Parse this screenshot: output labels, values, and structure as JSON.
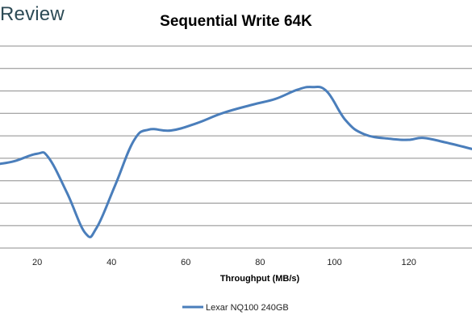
{
  "brand": {
    "text": "Review"
  },
  "chart_data": {
    "type": "line",
    "title": "Sequential Write 64K",
    "xlabel": "Throughput (MB/s)",
    "ylabel": "",
    "xlim": [
      10,
      137
    ],
    "x_ticks": [
      20,
      40,
      60,
      80,
      100,
      120
    ],
    "grid": true,
    "legend_position": "bottom",
    "series": [
      {
        "name": "Lexar NQ100 240GB",
        "color": "#4a7ebb",
        "x": [
          10,
          14,
          20,
          23,
          28,
          33,
          36,
          41,
          46,
          50,
          56,
          63,
          70,
          78,
          84,
          90,
          94,
          98,
          103,
          108,
          115,
          120,
          124,
          130,
          137
        ],
        "y": [
          6.05,
          6.2,
          6.6,
          6.4,
          4.5,
          2.3,
          2.6,
          4.9,
          7.3,
          7.9,
          7.85,
          8.25,
          8.8,
          9.25,
          9.55,
          10.05,
          10.2,
          9.95,
          8.4,
          7.65,
          7.4,
          7.35,
          7.45,
          7.2,
          6.85
        ]
      }
    ],
    "ylim": [
      1.5,
      12.5
    ]
  }
}
